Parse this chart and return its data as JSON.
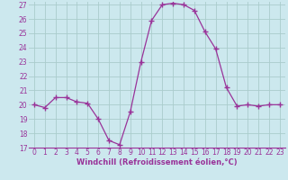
{
  "x": [
    0,
    1,
    2,
    3,
    4,
    5,
    6,
    7,
    8,
    9,
    10,
    11,
    12,
    13,
    14,
    15,
    16,
    17,
    18,
    19,
    20,
    21,
    22,
    23
  ],
  "y": [
    20,
    19.8,
    20.5,
    20.5,
    20.2,
    20.1,
    19,
    17.5,
    17.2,
    19.5,
    23,
    25.9,
    27,
    27.1,
    27,
    26.6,
    25.1,
    23.9,
    21.2,
    19.9,
    20,
    19.9,
    20,
    20
  ],
  "line_color": "#993399",
  "marker": "+",
  "marker_size": 4,
  "marker_lw": 1.0,
  "bg_color": "#cce8ee",
  "grid_color": "#aacccc",
  "xlabel": "Windchill (Refroidissement éolien,°C)",
  "xlabel_color": "#993399",
  "tick_color": "#993399",
  "ylim": [
    17,
    27
  ],
  "xlim": [
    -0.5,
    23.5
  ],
  "yticks": [
    17,
    18,
    19,
    20,
    21,
    22,
    23,
    24,
    25,
    26,
    27
  ],
  "xticks": [
    0,
    1,
    2,
    3,
    4,
    5,
    6,
    7,
    8,
    9,
    10,
    11,
    12,
    13,
    14,
    15,
    16,
    17,
    18,
    19,
    20,
    21,
    22,
    23
  ],
  "tick_fontsize": 5.5,
  "xlabel_fontsize": 6.0
}
